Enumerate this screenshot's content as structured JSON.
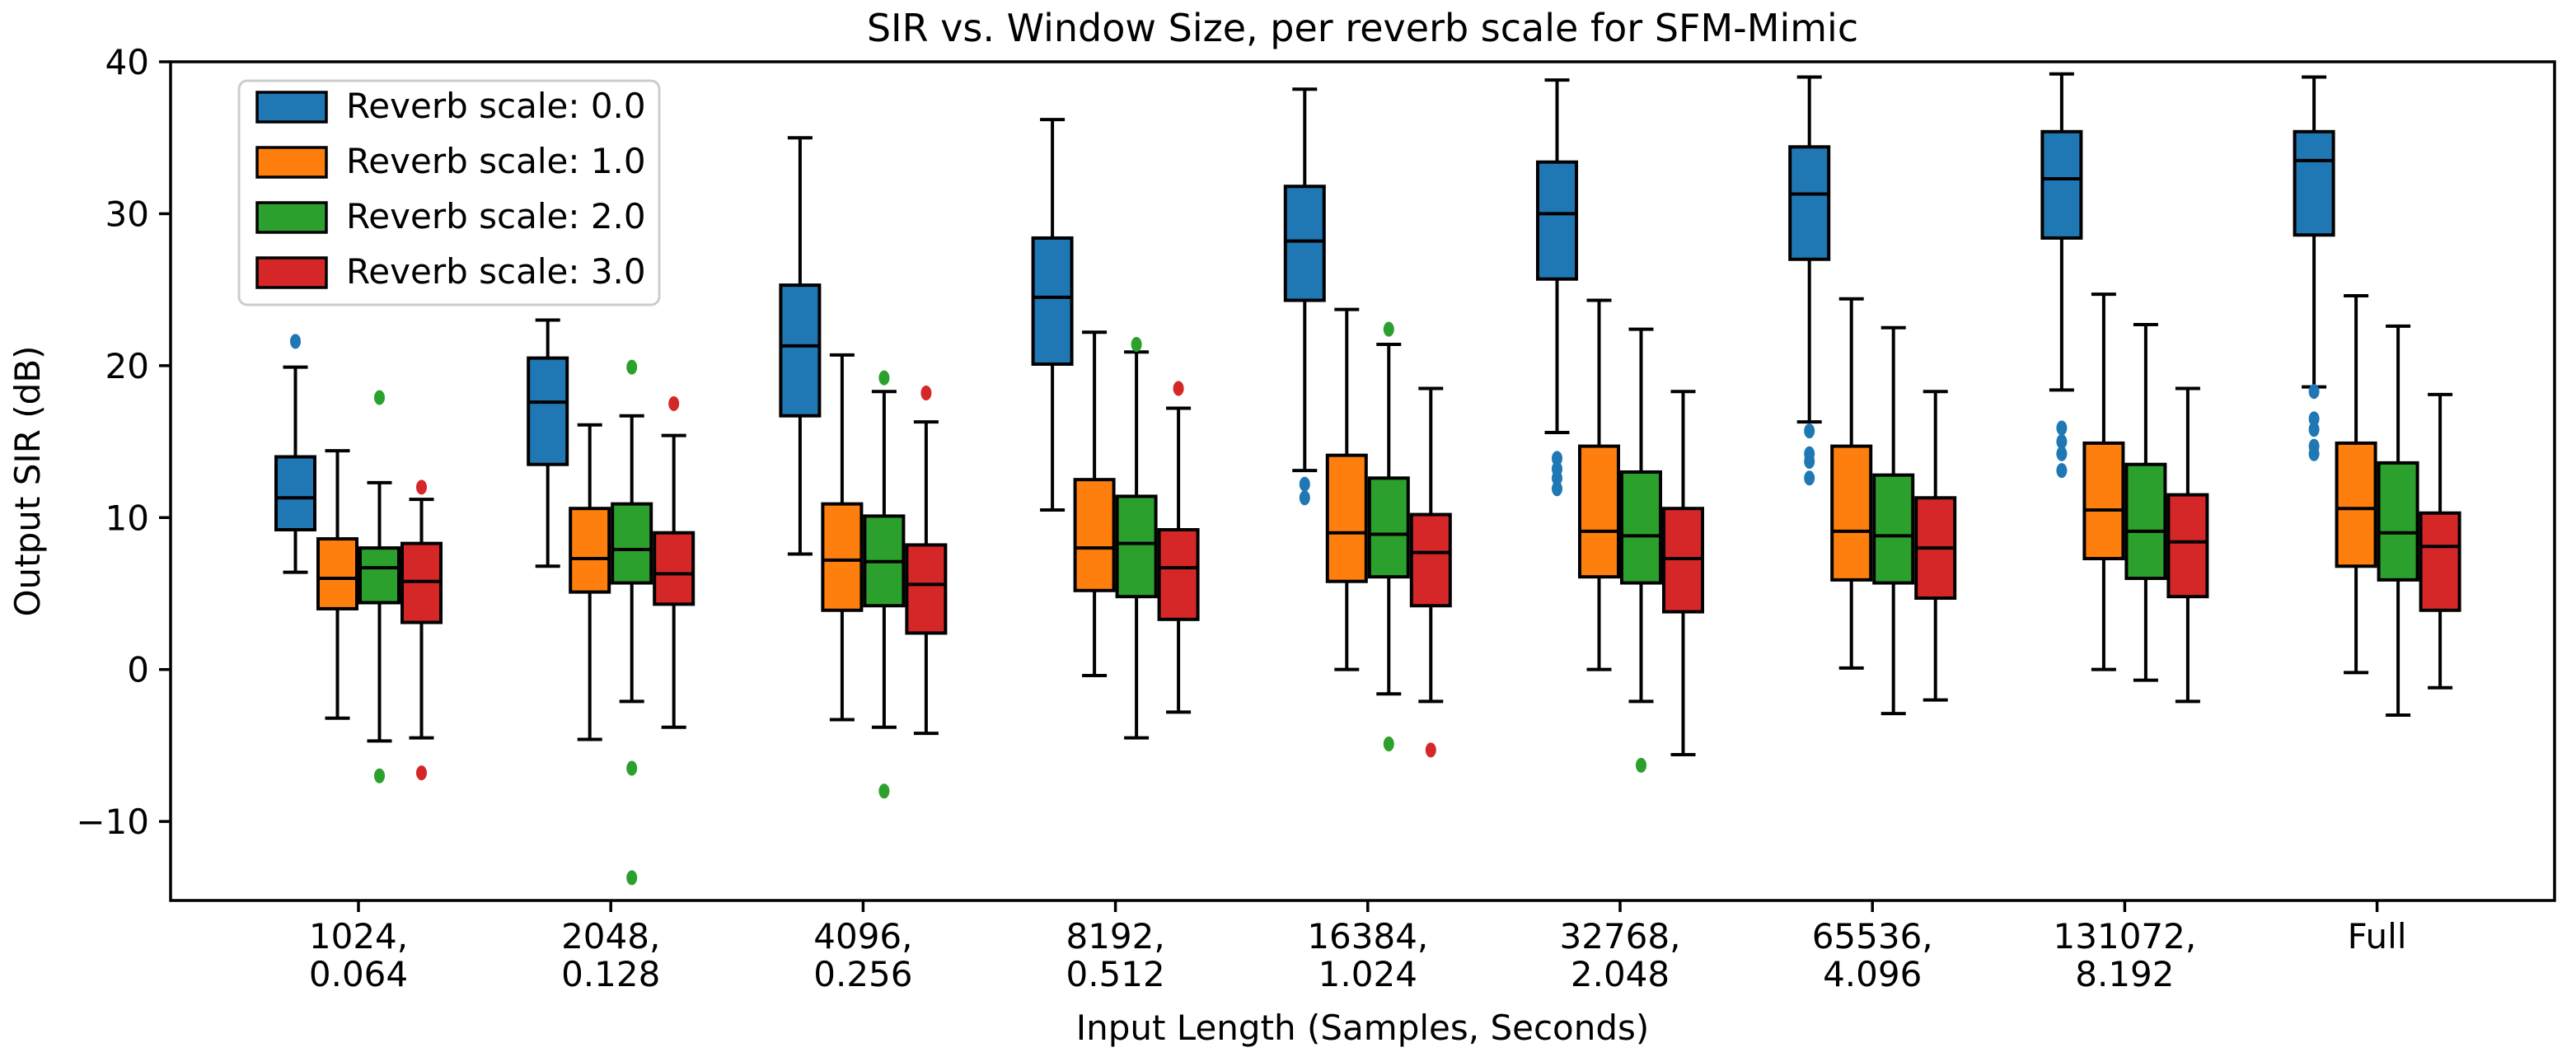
{
  "page": {
    "background": "#ffffff"
  },
  "chart_data": {
    "type": "boxplot",
    "title": "SIR vs. Window Size, per reverb scale for SFM-Mimic",
    "xlabel": "Input Length (Samples, Seconds)",
    "ylabel": "Output SIR (dB)",
    "ylim": [
      -15.2,
      40
    ],
    "grid": false,
    "legend_position": "upper-left",
    "yticks": [
      {
        "value": 40,
        "label": "40"
      },
      {
        "value": 30,
        "label": "30"
      },
      {
        "value": 20,
        "label": "20"
      },
      {
        "value": 10,
        "label": "10"
      },
      {
        "value": 0,
        "label": "0"
      },
      {
        "value": -10,
        "label": "−10"
      }
    ],
    "categories": [
      {
        "line1": "1024,",
        "line2": "0.064"
      },
      {
        "line1": "2048,",
        "line2": "0.128"
      },
      {
        "line1": "4096,",
        "line2": "0.256"
      },
      {
        "line1": "8192,",
        "line2": "0.512"
      },
      {
        "line1": "16384,",
        "line2": "1.024"
      },
      {
        "line1": "32768,",
        "line2": "2.048"
      },
      {
        "line1": "65536,",
        "line2": "4.096"
      },
      {
        "line1": "131072,",
        "line2": "8.192"
      },
      {
        "line1": "Full",
        "line2": ""
      }
    ],
    "series": [
      {
        "name": "Reverb scale: 0.0",
        "color": "#1f77b4",
        "boxes": [
          {
            "whislo": 6.4,
            "q1": 9.2,
            "med": 11.3,
            "q3": 14.0,
            "whishi": 19.9,
            "fliers": [
              21.6
            ]
          },
          {
            "whislo": 6.8,
            "q1": 13.5,
            "med": 17.6,
            "q3": 20.5,
            "whishi": 23.0,
            "fliers": []
          },
          {
            "whislo": 7.6,
            "q1": 16.7,
            "med": 21.3,
            "q3": 25.3,
            "whishi": 35.0,
            "fliers": []
          },
          {
            "whislo": 10.5,
            "q1": 20.1,
            "med": 24.5,
            "q3": 28.4,
            "whishi": 36.2,
            "fliers": []
          },
          {
            "whislo": 13.1,
            "q1": 24.3,
            "med": 28.2,
            "q3": 31.8,
            "whishi": 38.2,
            "fliers": [
              12.2,
              11.3
            ]
          },
          {
            "whislo": 15.6,
            "q1": 25.7,
            "med": 30.0,
            "q3": 33.4,
            "whishi": 38.8,
            "fliers": [
              13.9,
              13.2,
              12.6,
              11.9
            ]
          },
          {
            "whislo": 16.3,
            "q1": 27.0,
            "med": 31.3,
            "q3": 34.4,
            "whishi": 39.0,
            "fliers": [
              15.7,
              14.2,
              13.7,
              12.6
            ]
          },
          {
            "whislo": 18.4,
            "q1": 28.4,
            "med": 32.3,
            "q3": 35.4,
            "whishi": 39.2,
            "fliers": [
              15.9,
              15.0,
              14.2,
              13.1
            ]
          },
          {
            "whislo": 18.6,
            "q1": 28.6,
            "med": 33.5,
            "q3": 35.4,
            "whishi": 39.0,
            "fliers": [
              18.3,
              16.5,
              15.8,
              14.7,
              14.2
            ]
          }
        ]
      },
      {
        "name": "Reverb scale: 1.0",
        "color": "#ff7f0e",
        "boxes": [
          {
            "whislo": -3.2,
            "q1": 4.0,
            "med": 6.0,
            "q3": 8.6,
            "whishi": 14.4,
            "fliers": []
          },
          {
            "whislo": -4.6,
            "q1": 5.1,
            "med": 7.3,
            "q3": 10.6,
            "whishi": 16.1,
            "fliers": []
          },
          {
            "whislo": -3.3,
            "q1": 3.9,
            "med": 7.2,
            "q3": 10.9,
            "whishi": 20.7,
            "fliers": []
          },
          {
            "whislo": -0.4,
            "q1": 5.2,
            "med": 8.0,
            "q3": 12.5,
            "whishi": 22.2,
            "fliers": []
          },
          {
            "whislo": 0.0,
            "q1": 5.8,
            "med": 9.0,
            "q3": 14.1,
            "whishi": 23.7,
            "fliers": []
          },
          {
            "whislo": 0.0,
            "q1": 6.1,
            "med": 9.1,
            "q3": 14.7,
            "whishi": 24.3,
            "fliers": []
          },
          {
            "whislo": 0.1,
            "q1": 5.9,
            "med": 9.1,
            "q3": 14.7,
            "whishi": 24.4,
            "fliers": []
          },
          {
            "whislo": 0.0,
            "q1": 7.3,
            "med": 10.5,
            "q3": 14.9,
            "whishi": 24.7,
            "fliers": []
          },
          {
            "whislo": -0.2,
            "q1": 6.8,
            "med": 10.6,
            "q3": 14.9,
            "whishi": 24.6,
            "fliers": []
          }
        ]
      },
      {
        "name": "Reverb scale: 2.0",
        "color": "#2ca02c",
        "boxes": [
          {
            "whislo": -4.7,
            "q1": 4.4,
            "med": 6.7,
            "q3": 8.0,
            "whishi": 12.3,
            "fliers": [
              17.9,
              -7.0
            ]
          },
          {
            "whislo": -2.1,
            "q1": 5.7,
            "med": 7.9,
            "q3": 10.9,
            "whishi": 16.7,
            "fliers": [
              19.9,
              -6.5,
              -13.7
            ]
          },
          {
            "whislo": -3.8,
            "q1": 4.2,
            "med": 7.1,
            "q3": 10.1,
            "whishi": 18.3,
            "fliers": [
              19.2,
              -8.0
            ]
          },
          {
            "whislo": -4.5,
            "q1": 4.8,
            "med": 8.3,
            "q3": 11.4,
            "whishi": 20.9,
            "fliers": [
              21.4
            ]
          },
          {
            "whislo": -1.6,
            "q1": 6.1,
            "med": 8.9,
            "q3": 12.6,
            "whishi": 21.4,
            "fliers": [
              22.4,
              -4.9
            ]
          },
          {
            "whislo": -2.1,
            "q1": 5.7,
            "med": 8.8,
            "q3": 13.0,
            "whishi": 22.4,
            "fliers": [
              -6.3
            ]
          },
          {
            "whislo": -2.9,
            "q1": 5.7,
            "med": 8.8,
            "q3": 12.8,
            "whishi": 22.5,
            "fliers": []
          },
          {
            "whislo": -0.7,
            "q1": 6.0,
            "med": 9.1,
            "q3": 13.5,
            "whishi": 22.7,
            "fliers": []
          },
          {
            "whislo": -3.0,
            "q1": 5.9,
            "med": 9.0,
            "q3": 13.6,
            "whishi": 22.6,
            "fliers": []
          }
        ]
      },
      {
        "name": "Reverb scale: 3.0",
        "color": "#d62728",
        "boxes": [
          {
            "whislo": -4.5,
            "q1": 3.1,
            "med": 5.8,
            "q3": 8.3,
            "whishi": 11.2,
            "fliers": [
              12.0,
              -6.8
            ]
          },
          {
            "whislo": -3.8,
            "q1": 4.3,
            "med": 6.3,
            "q3": 9.0,
            "whishi": 15.4,
            "fliers": [
              17.5
            ]
          },
          {
            "whislo": -4.2,
            "q1": 2.4,
            "med": 5.6,
            "q3": 8.2,
            "whishi": 16.3,
            "fliers": [
              18.2
            ]
          },
          {
            "whislo": -2.8,
            "q1": 3.3,
            "med": 6.7,
            "q3": 9.2,
            "whishi": 17.2,
            "fliers": [
              18.5
            ]
          },
          {
            "whislo": -2.1,
            "q1": 4.2,
            "med": 7.7,
            "q3": 10.2,
            "whishi": 18.5,
            "fliers": [
              -5.3
            ]
          },
          {
            "whislo": -5.6,
            "q1": 3.8,
            "med": 7.3,
            "q3": 10.6,
            "whishi": 18.3,
            "fliers": []
          },
          {
            "whislo": -2.0,
            "q1": 4.7,
            "med": 8.0,
            "q3": 11.3,
            "whishi": 18.3,
            "fliers": []
          },
          {
            "whislo": -2.1,
            "q1": 4.8,
            "med": 8.4,
            "q3": 11.5,
            "whishi": 18.5,
            "fliers": []
          },
          {
            "whislo": -1.2,
            "q1": 3.9,
            "med": 8.1,
            "q3": 10.3,
            "whishi": 18.1,
            "fliers": []
          }
        ]
      }
    ]
  }
}
